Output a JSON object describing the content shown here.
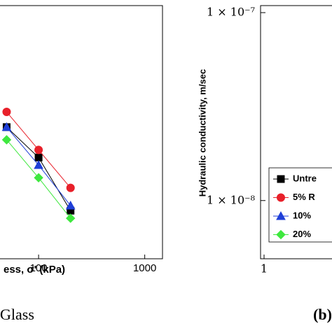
{
  "chart_data": [
    {
      "type": "line",
      "x_label": "ess, σ' (kPa)",
      "caption": "Glass",
      "xlog": true,
      "xlim": [
        42,
        1470
      ],
      "xticks": [
        100,
        1000
      ],
      "ylim": [
        0,
        1
      ],
      "x": [
        50,
        100,
        200
      ],
      "series": [
        {
          "name": "Untre",
          "color": "#000000",
          "marker": "square",
          "values": [
            0.52,
            0.4,
            0.19
          ]
        },
        {
          "name": "5% R",
          "color": "#e8202a",
          "marker": "circle",
          "values": [
            0.58,
            0.43,
            0.28
          ]
        },
        {
          "name": "10%",
          "color": "#1f3fd8",
          "marker": "triangle",
          "values": [
            0.52,
            0.37,
            0.21
          ]
        },
        {
          "name": "20%",
          "color": "#3ee83e",
          "marker": "diamond",
          "values": [
            0.47,
            0.32,
            0.16
          ]
        }
      ]
    },
    {
      "type": "frame",
      "y_label": "Hydraulic conductivity, m/sec",
      "caption": "(b)",
      "ylog": true,
      "xlog": true,
      "ylim": [
        4.9e-09,
        1.09e-07
      ],
      "yticks": [
        {
          "value": 1e-07,
          "label": "1 × 10⁻⁷"
        },
        {
          "value": 1e-08,
          "label": "1 × 10⁻⁸"
        }
      ],
      "xlim": [
        1,
        10
      ],
      "xticks": [
        1
      ]
    }
  ]
}
